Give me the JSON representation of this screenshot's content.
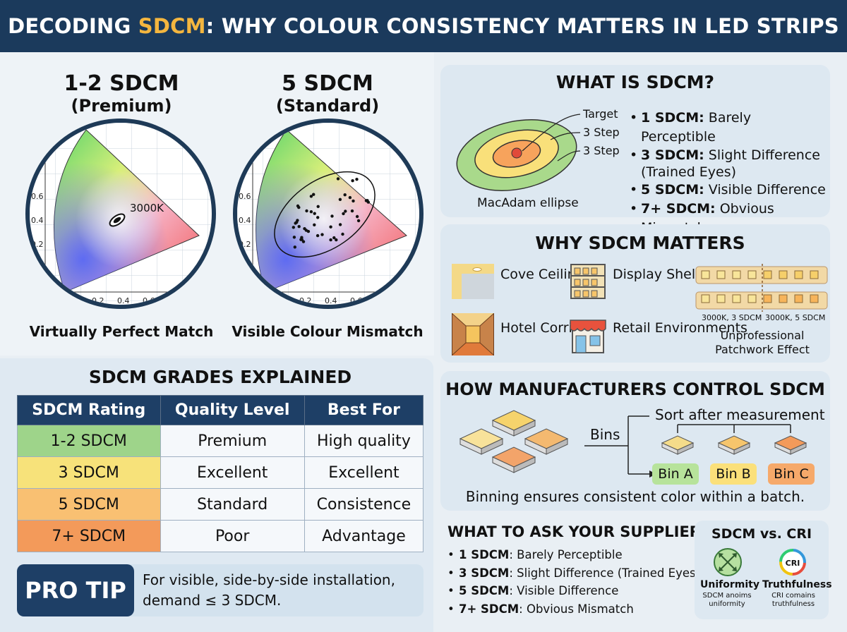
{
  "header": {
    "title_pre": "DECODING ",
    "title_hl": "SDCM",
    "title_post": ": WHY COLOUR CONSISTENCY MATTERS IN LED STRIPS"
  },
  "comparison": {
    "premium": {
      "title": "1-2 SDCM",
      "subtitle": "(Premium)",
      "point_label": "3000K",
      "caption": "Virtually Perfect Match"
    },
    "standard": {
      "title": "5 SDCM",
      "subtitle": "(Standard)",
      "caption": "Visible Colour Mismatch"
    },
    "y_ticks": [
      "0.6",
      "0.4",
      "0.2"
    ],
    "x_ticks": [
      "0.2",
      "0.4",
      "0.6"
    ]
  },
  "grades": {
    "title": "SDCM GRADES EXPLAINED",
    "headers": [
      "SDCM Rating",
      "Quality Level",
      "Best For"
    ],
    "rows": [
      [
        "1-2 SDCM",
        "Premium",
        "High quality"
      ],
      [
        "3 SDCM",
        "Excellent",
        "Excellent"
      ],
      [
        "5 SDCM",
        "Standard",
        "Consistence"
      ],
      [
        "7+ SDCM",
        "Poor",
        "Advantage"
      ]
    ],
    "row_colors": [
      "#9ed48a",
      "#f7e27a",
      "#f9c072",
      "#f39a5a"
    ]
  },
  "protip": {
    "badge": "PRO TIP",
    "text": "For visible, side-by-side installation, demand ≤ 3 SDCM."
  },
  "what_is": {
    "title": "WHAT IS SDCM?",
    "ellipse_labels": [
      "Target",
      "3 Step",
      "3 Step"
    ],
    "ellipse_caption": "MacAdam ellipse",
    "items": [
      {
        "bold": "1 SDCM:",
        "text": " Barely Perceptible"
      },
      {
        "bold": "3 SDCM:",
        "text": " Slight Difference (Trained Eyes)"
      },
      {
        "bold": "5 SDCM:",
        "text": " Visible Difference"
      },
      {
        "bold": "7+ SDCM:",
        "text": " Obvious Mismatch"
      }
    ]
  },
  "why": {
    "title": "WHY SDCM MATTERS",
    "apps": [
      {
        "label": "Cove Ceilings",
        "icon": "cove-ceiling-icon"
      },
      {
        "label": "Display Shelving",
        "icon": "shelving-icon"
      },
      {
        "label": "Hotel Corridors",
        "icon": "corridor-icon"
      },
      {
        "label": "Retail Environments",
        "icon": "store-icon"
      }
    ],
    "strip_labels": [
      "3000K, 3 SDCM",
      "3000K, 5 SDCM"
    ],
    "strip_caption": "Unprofessional Patchwork Effect"
  },
  "manufacturers": {
    "title": "HOW MANUFACTURERS CONTROL SDCM",
    "bins_label": "Bins",
    "sort_label": "Sort after measurement",
    "bins": [
      "Bin A",
      "Bin B",
      "Bin C"
    ],
    "bin_colors": [
      "#b7e39b",
      "#fbe07a",
      "#f6a96a"
    ],
    "footer": "Binning ensures consistent color within a batch."
  },
  "ask": {
    "title": "WHAT TO ASK YOUR SUPPLIER",
    "items": [
      {
        "bold": "1 SDCM",
        "text": ": Barely Perceptible"
      },
      {
        "bold": "3 SDCM",
        "text": ": Slight Difference (Trained Eyes)"
      },
      {
        "bold": "5 SDCM",
        "text": ": Visible Difference"
      },
      {
        "bold": "7+ SDCM",
        "text": ": Obvious Mismatch"
      }
    ]
  },
  "vs": {
    "title": "SDCM vs. CRI",
    "uniformity": {
      "label": "Uniformity",
      "desc": "SDCM anoims uniformity"
    },
    "truthfulness": {
      "label": "Truthfulness",
      "icon_text": "CRI",
      "desc": "CRI comains truthfulness"
    }
  }
}
